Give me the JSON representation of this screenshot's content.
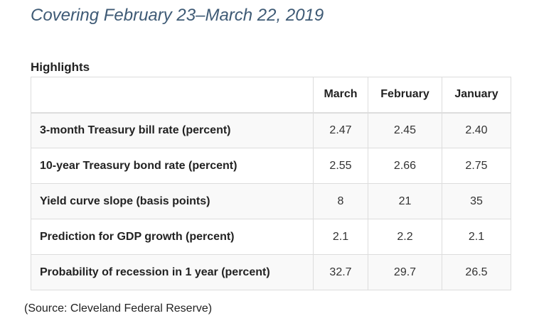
{
  "subtitle": "Covering February 23–March 22, 2019",
  "table": {
    "caption": "Highlights",
    "columns": [
      "",
      "March",
      "February",
      "January"
    ],
    "rows": [
      {
        "label": "3-month Treasury bill rate (percent)",
        "march": "2.47",
        "february": "2.45",
        "january": "2.40"
      },
      {
        "label": "10-year Treasury bond rate (percent)",
        "march": "2.55",
        "february": "2.66",
        "january": "2.75"
      },
      {
        "label": "Yield curve slope (basis points)",
        "march": "8",
        "february": "21",
        "january": "35"
      },
      {
        "label": "Prediction for GDP growth (percent)",
        "march": "2.1",
        "february": "2.2",
        "january": "2.1"
      },
      {
        "label": "Probability of recession in 1 year (percent)",
        "march": "32.7",
        "february": "29.7",
        "january": "26.5"
      }
    ]
  },
  "source": "(Source: Cleveland Federal Reserve)"
}
